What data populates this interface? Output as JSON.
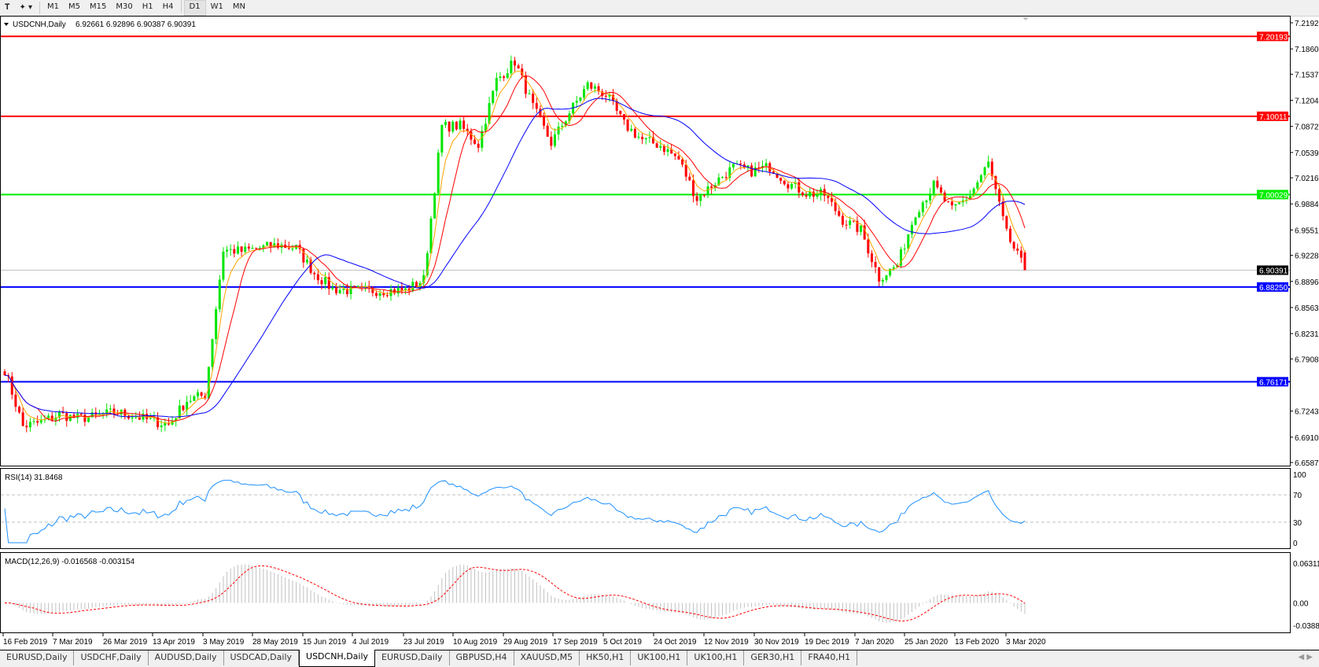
{
  "toolbar": {
    "icons": [
      "text-tool-icon",
      "shapes-dropdown-icon"
    ],
    "timeframes": [
      "M1",
      "M5",
      "M15",
      "M30",
      "H1",
      "H4",
      "D1",
      "W1",
      "MN"
    ],
    "active_timeframe": "D1"
  },
  "chart_header": {
    "symbol": "USDCNH,Daily",
    "ohlc": "6.92661 6.92896 6.90387 6.90391"
  },
  "price_axis": {
    "ticks": [
      "7.21925",
      "7.18600",
      "7.15370",
      "7.12045",
      "7.08720",
      "7.05395",
      "7.02165",
      "6.98840",
      "6.95515",
      "6.92285",
      "6.88960",
      "6.85635",
      "6.82310",
      "6.79080",
      "6.72430",
      "6.69105",
      "6.65875"
    ]
  },
  "levels": [
    {
      "price": "7.20193",
      "color": "#ff0000"
    },
    {
      "price": "7.10011",
      "color": "#ff0000"
    },
    {
      "price": "7.00029",
      "color": "#00ee00"
    },
    {
      "price": "6.88250",
      "color": "#0000ff"
    },
    {
      "price": "6.76171",
      "color": "#0000ff"
    }
  ],
  "bid": {
    "price": "6.90391",
    "color": "#000000"
  },
  "rsi": {
    "label": "RSI(14) 31.8468",
    "ticks": [
      "100",
      "70",
      "30",
      "0"
    ]
  },
  "macd": {
    "label": "MACD(12,26,9) -0.016568 -0.003154",
    "ticks": [
      "0.063111",
      "0.00",
      "-0.03887"
    ]
  },
  "date_axis": [
    "16 Feb 2019",
    "7 Mar 2019",
    "26 Mar 2019",
    "13 Apr 2019",
    "3 May 2019",
    "28 May 2019",
    "15 Jun 2019",
    "4 Jul 2019",
    "23 Jul 2019",
    "10 Aug 2019",
    "29 Aug 2019",
    "17 Sep 2019",
    "5 Oct 2019",
    "24 Oct 2019",
    "12 Nov 2019",
    "30 Nov 2019",
    "19 Dec 2019",
    "7 Jan 2020",
    "25 Jan 2020",
    "13 Feb 2020",
    "3 Mar 2020"
  ],
  "tabs": [
    "EURUSD,Daily",
    "USDCHF,Daily",
    "AUDUSD,Daily",
    "USDCAD,Daily",
    "USDCNH,Daily",
    "EURUSD,Daily",
    "GBPUSD,H4",
    "XAUUSD,M5",
    "HK50,H1",
    "UK100,H1",
    "UK100,H1",
    "GER30,H1",
    "FRA40,H1"
  ],
  "active_tab": 4,
  "chart_data": {
    "type": "candlestick",
    "title": "USDCNH,Daily",
    "ylim": [
      6.65875,
      7.21925
    ],
    "x_start": "16 Feb 2019",
    "interval": "weekly anchor closes",
    "closes": [
      6.777,
      6.705,
      6.71,
      6.72,
      6.715,
      6.717,
      6.723,
      6.719,
      6.712,
      6.707,
      6.738,
      6.745,
      6.93,
      6.928,
      6.932,
      6.936,
      6.932,
      6.9,
      6.88,
      6.878,
      6.878,
      6.878,
      6.878,
      6.892,
      7.087,
      7.088,
      7.064,
      7.146,
      7.17,
      7.112,
      7.066,
      7.105,
      7.14,
      7.128,
      7.09,
      7.07,
      7.063,
      7.045,
      6.995,
      7.016,
      7.035,
      7.03,
      7.036,
      7.015,
      7.002,
      7.0,
      6.968,
      6.955,
      6.894,
      6.91,
      6.978,
      7.012,
      6.98,
      7.0,
      7.04,
      6.95,
      6.904
    ],
    "last_bar": {
      "open": 6.92661,
      "high": 6.92896,
      "low": 6.90387,
      "close": 6.90391
    },
    "colors": {
      "bull": "#00e600",
      "bear": "#ff0000",
      "ma_fast": "#ffa500",
      "ma_mid": "#ff0000",
      "ma_slow": "#0000ff",
      "rsi": "#1e90ff",
      "macd_hist": "#c0c0c0",
      "macd_signal": "#ff0000"
    }
  }
}
